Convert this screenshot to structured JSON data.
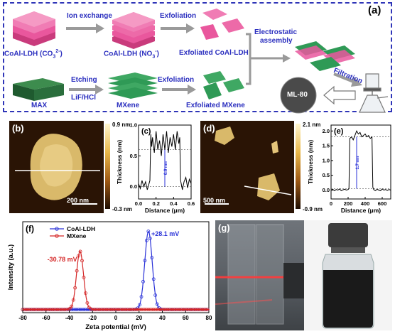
{
  "panel_a": {
    "label": "(a)",
    "ldh_top_label": "CoAl-LDH (CO",
    "ldh_top_sub": "3",
    "ldh_top_sup": "2-",
    "ion_exchange": "Ion exchange",
    "ldh_mid_label": "CoAl-LDH (NO",
    "ldh_mid_sub": "3",
    "ldh_mid_sup": "-",
    "exfoliation_top": "Exfoliation",
    "exfoliated_ldh": "Exfoliated CoAl-LDH",
    "electrostatic_1": "Electrostatic",
    "electrostatic_2": "assembly",
    "filtration": "Filtration",
    "max": "MAX",
    "etching": "Etching",
    "lif_hcl": "LiF/HCl",
    "mxene": "MXene",
    "exfoliation_bottom": "Exfoliation",
    "exfoliated_mxene": "Exfoliated MXene",
    "product": "ML-80",
    "colors": {
      "ldh": "#e9579d",
      "mxene": "#2f9a56",
      "frame": "#2f35b8",
      "text": "#2b2fbf"
    }
  },
  "panel_b": {
    "label": "(b)",
    "scale_bar": "200 nm",
    "cbar_top": "0.9 nm",
    "cbar_bottom": "-0.3 nm"
  },
  "panel_c": {
    "label": "(c)",
    "annotation": "0.6 nm",
    "chart_data": {
      "type": "line",
      "xlabel": "Distance (μm)",
      "ylabel": "Thickness (nm)",
      "xlim": [
        0.0,
        0.6
      ],
      "ylim": [
        -0.2,
        1.0
      ],
      "xticks": [
        "0.0",
        "0.2",
        "0.4",
        "0.6"
      ],
      "yticks": [
        "0.0",
        "0.5",
        "1.0"
      ],
      "x": [
        0.0,
        0.02,
        0.04,
        0.06,
        0.08,
        0.1,
        0.12,
        0.13,
        0.14,
        0.15,
        0.16,
        0.18,
        0.2,
        0.22,
        0.24,
        0.26,
        0.28,
        0.3,
        0.32,
        0.34,
        0.36,
        0.38,
        0.4,
        0.42,
        0.44,
        0.46,
        0.47,
        0.48,
        0.5,
        0.52,
        0.54,
        0.56,
        0.58,
        0.6
      ],
      "y": [
        0.05,
        -0.03,
        0.1,
        0.0,
        0.08,
        -0.05,
        0.05,
        0.1,
        0.85,
        0.65,
        0.8,
        0.55,
        0.9,
        0.6,
        0.75,
        0.5,
        0.85,
        0.6,
        0.9,
        0.55,
        0.8,
        0.65,
        0.85,
        0.6,
        0.9,
        0.7,
        0.8,
        0.1,
        -0.05,
        0.08,
        0.15,
        -0.02,
        0.12,
        0.05
      ]
    }
  },
  "panel_d": {
    "label": "(d)",
    "scale_bar": "500 nm",
    "cbar_top": "2.1 nm",
    "cbar_bottom": "-0.9 nm"
  },
  "panel_e": {
    "label": "(e)",
    "annotation": "1.7 nm",
    "chart_data": {
      "type": "line",
      "xlabel": "Distance (μm)",
      "ylabel": "Thickness (nm)",
      "xlim": [
        0,
        700
      ],
      "ylim": [
        -0.3,
        2.2
      ],
      "xticks": [
        "0",
        "200",
        "400",
        "600"
      ],
      "yticks": [
        "0.0",
        "0.5",
        "1.0",
        "1.5",
        "2.0"
      ],
      "x": [
        0,
        20,
        40,
        60,
        80,
        100,
        120,
        140,
        160,
        180,
        200,
        210,
        220,
        240,
        260,
        280,
        300,
        320,
        340,
        360,
        380,
        400,
        420,
        440,
        460,
        480,
        490,
        500,
        520,
        540,
        560,
        580,
        600,
        620,
        640,
        660,
        680,
        700
      ],
      "y": [
        0.0,
        0.03,
        -0.02,
        0.02,
        0.0,
        0.04,
        -0.02,
        0.01,
        0.03,
        0.0,
        0.02,
        0.05,
        1.75,
        1.8,
        1.7,
        1.85,
        2.0,
        1.9,
        1.95,
        1.8,
        1.85,
        1.9,
        1.8,
        1.85,
        1.75,
        1.8,
        0.1,
        0.02,
        -0.02,
        0.03,
        0.0,
        -0.02,
        0.04,
        0.0,
        0.02,
        -0.01,
        0.02,
        0.0
      ]
    }
  },
  "panel_f": {
    "label": "(f)",
    "chart_data": {
      "type": "line",
      "xlabel": "Zeta potential (mV)",
      "ylabel": "Intensity (a.u.)",
      "xlim": [
        -80,
        80
      ],
      "xticks": [
        "-80",
        "-60",
        "-40",
        "-20",
        "0",
        "20",
        "40",
        "60",
        "80"
      ],
      "series": [
        {
          "name": "CoAl-LDH",
          "color": "#2a32d8",
          "peak_label": "+28.1 mV",
          "peak": 28.1,
          "width": 3.2,
          "height": 0.86
        },
        {
          "name": "MXene",
          "color": "#d42525",
          "peak_label": "-30.78 mV",
          "peak": -30.78,
          "width": 3.0,
          "height": 0.64
        }
      ]
    }
  },
  "panel_g": {
    "label": "(g)"
  }
}
